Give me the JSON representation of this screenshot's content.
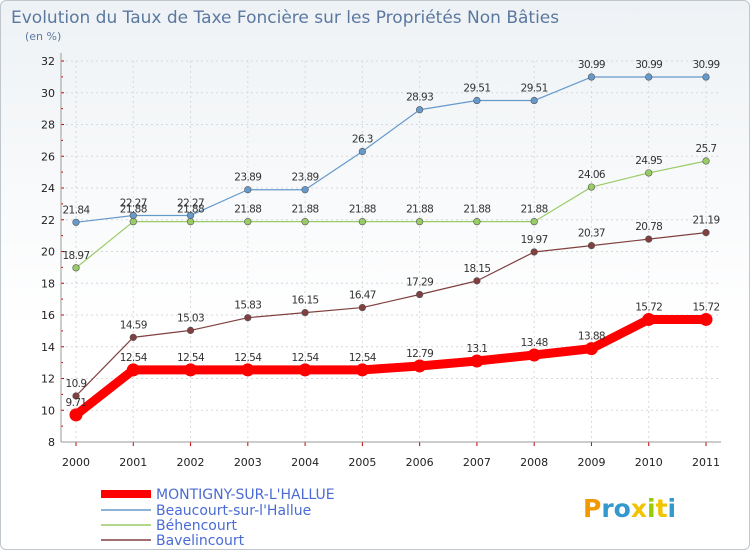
{
  "chart_data": {
    "type": "line",
    "title": "Evolution du Taux de Taxe Foncière sur les Propriétés Non Bâties",
    "subtitle": "(en %)",
    "x": [
      "2000",
      "2001",
      "2002",
      "2003",
      "2004",
      "2005",
      "2006",
      "2007",
      "2008",
      "2009",
      "2010",
      "2011"
    ],
    "ylim": [
      8,
      32
    ],
    "yticks": [
      "8",
      "10",
      "12",
      "14",
      "16",
      "18",
      "20",
      "22",
      "24",
      "26",
      "28",
      "30",
      "32"
    ],
    "grid": true,
    "legend": "bottom-left",
    "series": [
      {
        "name": "MONTIGNY-SUR-L'HALLUE",
        "color": "#ff0000",
        "values": [
          9.71,
          12.54,
          12.54,
          12.54,
          12.54,
          12.54,
          12.79,
          13.1,
          13.48,
          13.88,
          15.72,
          15.72
        ],
        "labels": [
          "9.71",
          "12.54",
          "12.54",
          "12.54",
          "12.54",
          "12.54",
          "12.79",
          "13.1",
          "13.48",
          "13.88",
          "15.72",
          "15.72"
        ]
      },
      {
        "name": "Beaucourt-sur-l'Hallue",
        "color": "#6699cc",
        "values": [
          21.84,
          22.27,
          22.27,
          23.89,
          23.89,
          26.3,
          28.93,
          29.51,
          29.51,
          30.99,
          30.99,
          30.99
        ],
        "labels": [
          "21.84",
          "22.27",
          "22.27",
          "23.89",
          "23.89",
          "26.3",
          "28.93",
          "29.51",
          "29.51",
          "30.99",
          "30.99",
          "30.99"
        ]
      },
      {
        "name": "Béhencourt",
        "color": "#99cc66",
        "values": [
          18.97,
          21.88,
          21.88,
          21.88,
          21.88,
          21.88,
          21.88,
          21.88,
          21.88,
          24.06,
          24.95,
          25.7
        ],
        "labels": [
          "18.97",
          "21.88",
          "21.88",
          "21.88",
          "21.88",
          "21.88",
          "21.88",
          "21.88",
          "21.88",
          "24.06",
          "24.95",
          "25.7"
        ]
      },
      {
        "name": "Bavelincourt",
        "color": "#804040",
        "values": [
          10.9,
          14.59,
          15.03,
          15.83,
          16.15,
          16.47,
          17.29,
          18.15,
          19.97,
          20.37,
          20.78,
          21.19
        ],
        "labels": [
          "10.9",
          "14.59",
          "15.03",
          "15.83",
          "16.15",
          "16.47",
          "17.29",
          "18.15",
          "19.97",
          "20.37",
          "20.78",
          "21.19"
        ]
      }
    ]
  },
  "logo": {
    "text": "Proxiti"
  }
}
